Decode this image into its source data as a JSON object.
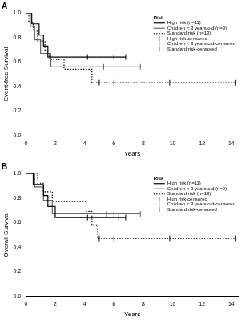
{
  "chart_data": [
    {
      "type": "line",
      "title": "A",
      "x_label": "Years",
      "y_label": "Event-free Survival",
      "xlim": [
        0,
        14.5
      ],
      "xticks": [
        0,
        2,
        4,
        6,
        8,
        10,
        12,
        14
      ],
      "ylim": [
        0,
        1
      ],
      "yticks": [
        {
          "value": 0,
          "label": "0.0"
        },
        0.2,
        0.4,
        0.6,
        0.8,
        {
          "value": 1,
          "label": "1.0"
        }
      ],
      "grid": false,
      "legend": "top right",
      "legend_title": "Risk",
      "series": [
        {
          "name": "High risk (n=11)",
          "type": "line",
          "line_style": "solid",
          "color": "#000000",
          "x": [
            0,
            0.4,
            0.9,
            1.2,
            1.5,
            6.8
          ],
          "values": [
            1,
            0.91,
            0.82,
            0.73,
            0.64,
            0.64
          ]
        },
        {
          "name": "Children < 3 years old (n=9)",
          "type": "line",
          "line_style": "solid",
          "color": "#666666",
          "x": [
            0,
            0.3,
            0.6,
            1.0,
            1.7,
            7.8
          ],
          "values": [
            1,
            0.89,
            0.78,
            0.67,
            0.56,
            0.56
          ]
        },
        {
          "name": "Standard risk (n=13)",
          "type": "line",
          "line_style": "dotted",
          "color": "#000000",
          "x": [
            0,
            0.2,
            0.5,
            0.8,
            1.3,
            1.6,
            2.6,
            4.5,
            14.3
          ],
          "values": [
            1,
            0.92,
            0.85,
            0.77,
            0.69,
            0.62,
            0.54,
            0.43,
            0.43
          ]
        },
        {
          "name": "High risk-censored",
          "type": "scatter",
          "marker": "line",
          "color": "#000000",
          "x": [
            4.2,
            6.0,
            6.8
          ],
          "values": [
            0.64,
            0.64,
            0.64
          ]
        },
        {
          "name": "Children < 3 years old-censored",
          "type": "scatter",
          "marker": "line",
          "color": "#666666",
          "x": [
            5.3,
            7.8
          ],
          "values": [
            0.56,
            0.56
          ]
        },
        {
          "name": "Standard risk-censored",
          "type": "scatter",
          "marker": "line",
          "color": "#000000",
          "x": [
            5.0,
            6.0,
            9.8,
            14.3
          ],
          "values": [
            0.43,
            0.43,
            0.43,
            0.43
          ]
        }
      ]
    },
    {
      "type": "line",
      "title": "B",
      "x_label": "Years",
      "y_label": "Overall Survival",
      "xlim": [
        0,
        14.5
      ],
      "xticks": [
        0,
        2,
        4,
        6,
        8,
        10,
        12,
        14
      ],
      "ylim": [
        0,
        1
      ],
      "yticks": [
        {
          "value": 0,
          "label": "0.0"
        },
        0.2,
        0.4,
        0.6,
        0.8,
        {
          "value": 1,
          "label": "1.0"
        }
      ],
      "grid": false,
      "legend": "top right",
      "legend_title": "Risk",
      "series": [
        {
          "name": "High risk (n=11)",
          "type": "line",
          "line_style": "solid",
          "color": "#000000",
          "x": [
            0,
            0.5,
            1.2,
            1.5,
            2.0,
            6.8
          ],
          "values": [
            1,
            0.91,
            0.82,
            0.73,
            0.64,
            0.64
          ]
        },
        {
          "name": "Children < 3 years old (n=9)",
          "type": "line",
          "line_style": "solid",
          "color": "#666666",
          "x": [
            0,
            0.6,
            1.2,
            1.8,
            7.8
          ],
          "values": [
            1,
            0.89,
            0.78,
            0.67,
            0.67
          ]
        },
        {
          "name": "Standard risk (n=13)",
          "type": "line",
          "line_style": "dotted",
          "color": "#000000",
          "x": [
            0,
            0.8,
            1.2,
            1.8,
            4.1,
            4.5,
            4.9,
            14.3
          ],
          "values": [
            1,
            0.92,
            0.85,
            0.77,
            0.69,
            0.58,
            0.47,
            0.47
          ]
        },
        {
          "name": "High risk-censored",
          "type": "scatter",
          "marker": "line",
          "color": "#000000",
          "x": [
            4.2,
            6.3,
            6.8
          ],
          "values": [
            0.64,
            0.64,
            0.64
          ]
        },
        {
          "name": "Children < 3 years old-censored",
          "type": "scatter",
          "marker": "line",
          "color": "#666666",
          "x": [
            5.5,
            6.0,
            7.8
          ],
          "values": [
            0.67,
            0.67,
            0.67
          ]
        },
        {
          "name": "Standard risk-censored",
          "type": "scatter",
          "marker": "line",
          "color": "#000000",
          "x": [
            5.0,
            6.0,
            9.8,
            14.3
          ],
          "values": [
            0.47,
            0.47,
            0.47,
            0.47
          ]
        }
      ]
    }
  ]
}
